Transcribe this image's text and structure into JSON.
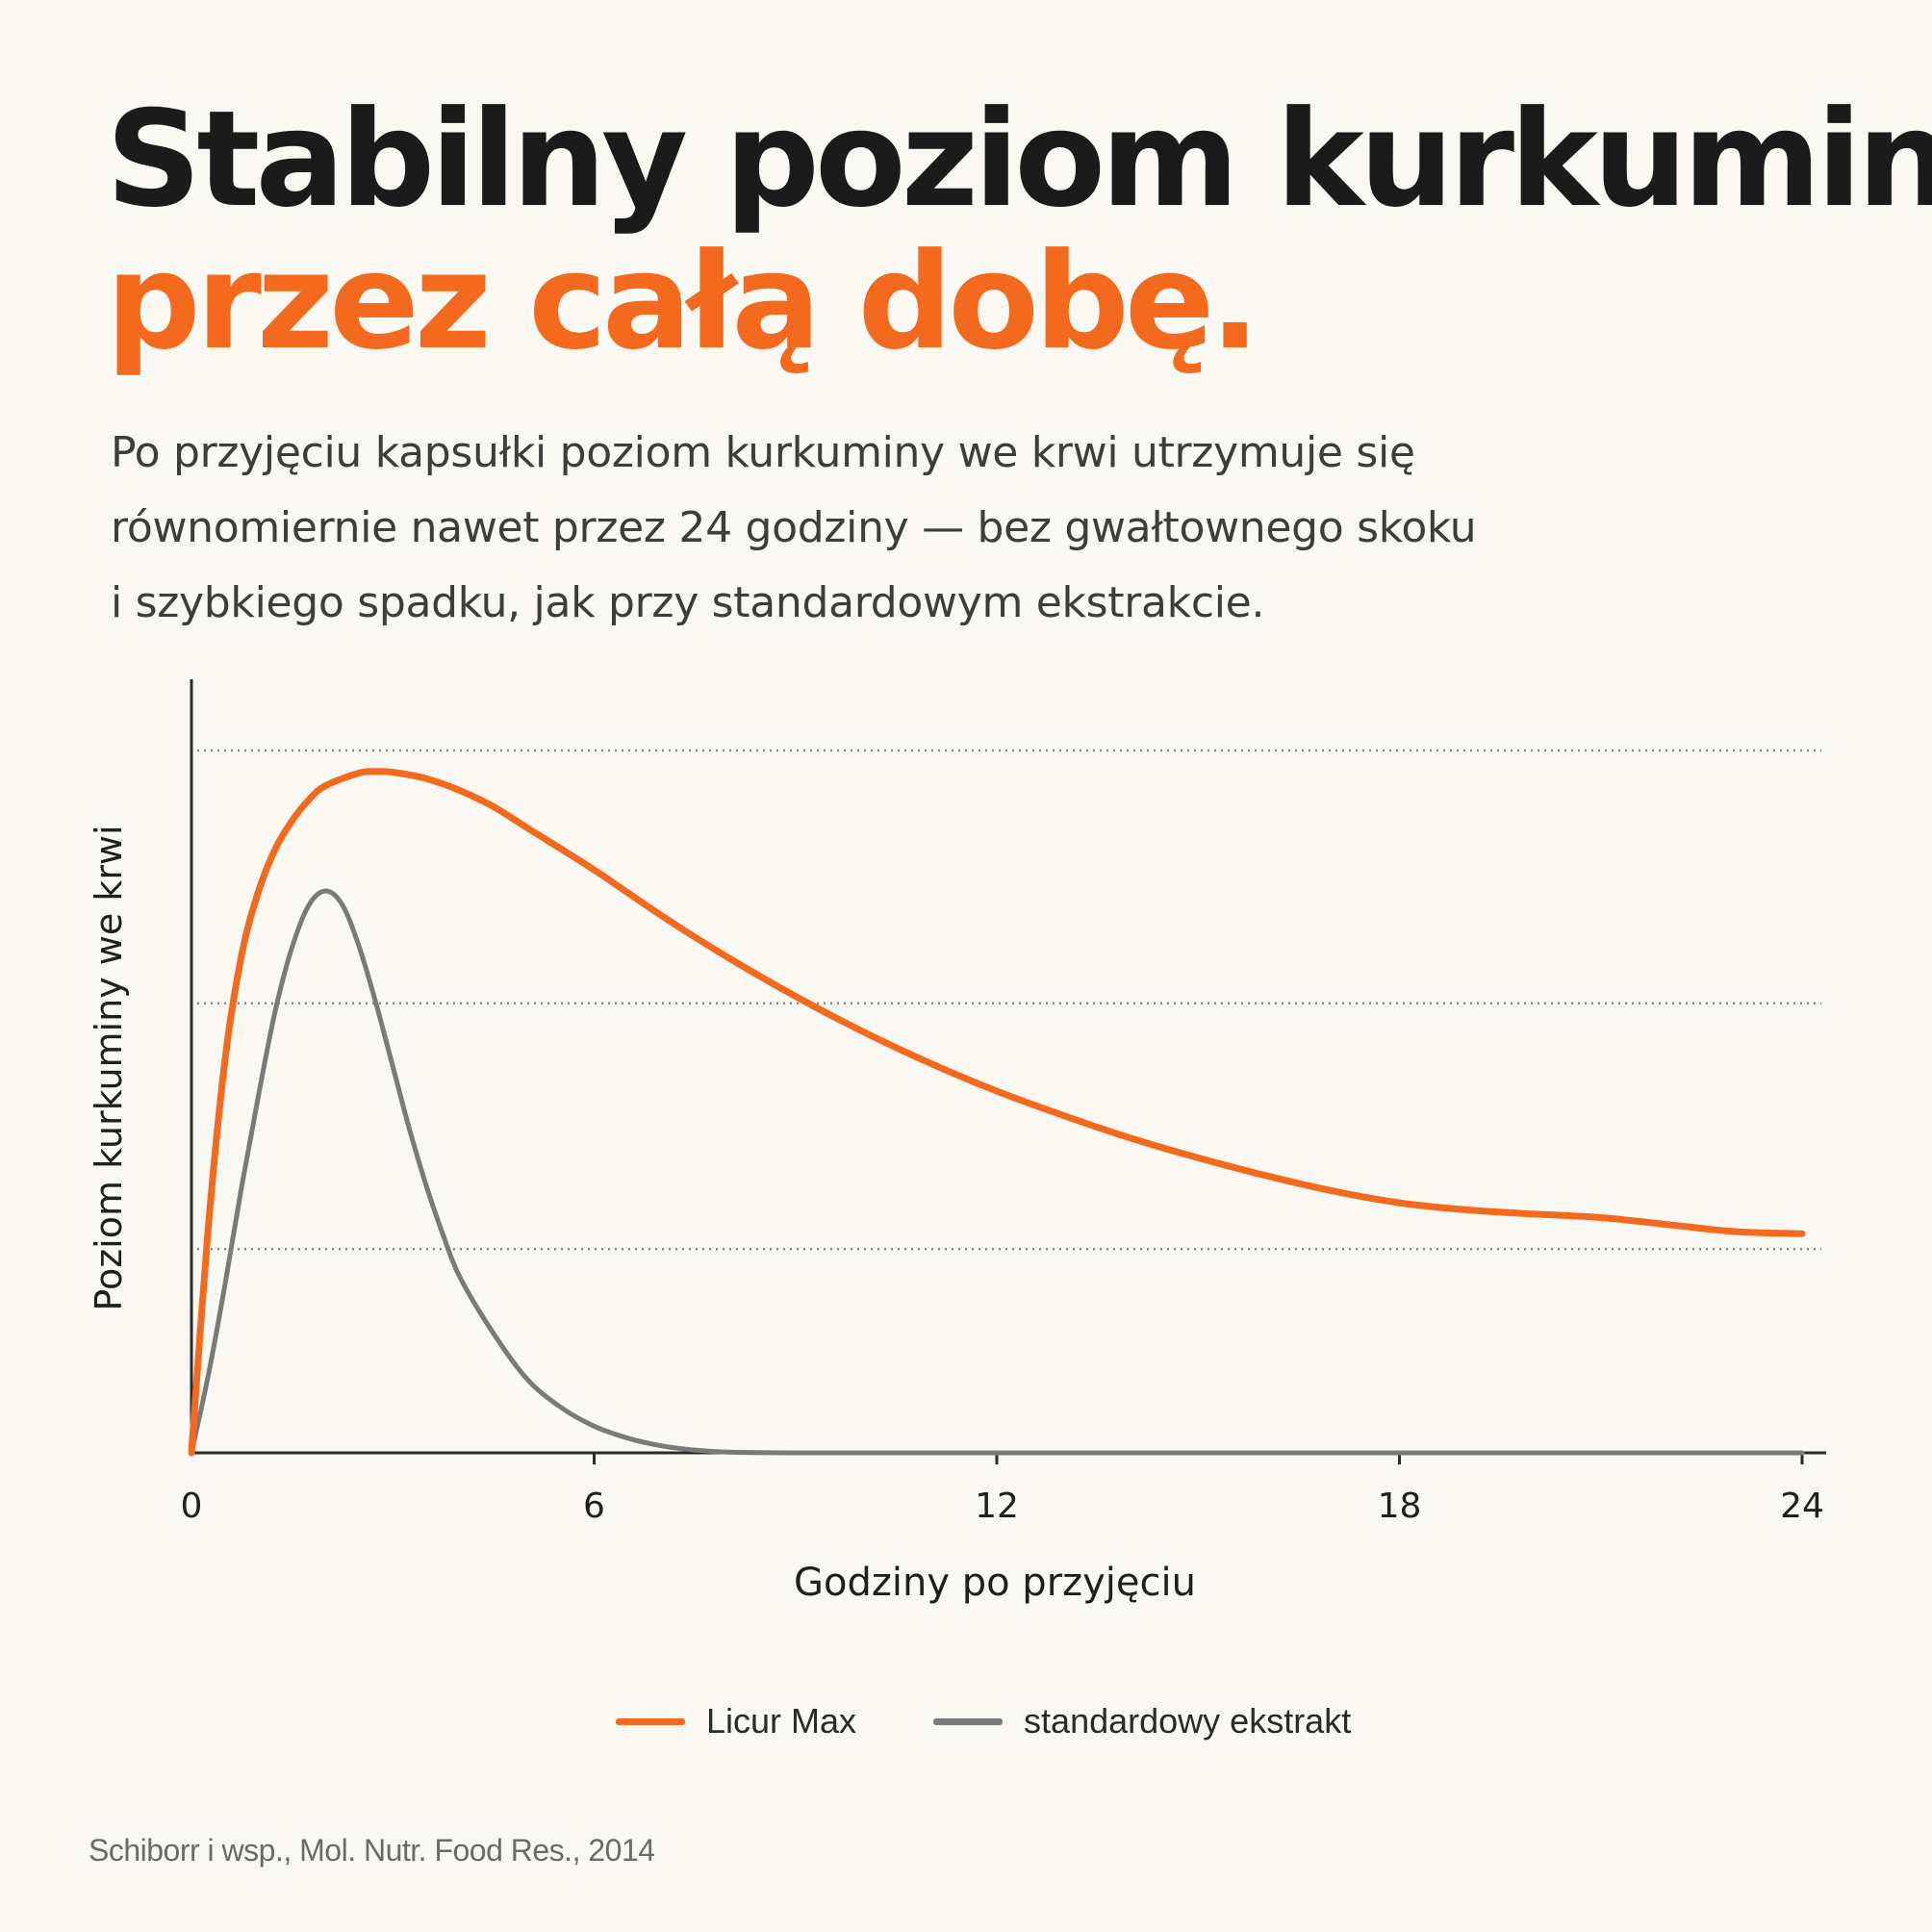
{
  "headline": {
    "line1": "Stabilny poziom kurkuminy",
    "line2": "przez całą dobę."
  },
  "lead": [
    "Po przyjęciu kapsułki poziom kurkuminy we krwi utrzymuje się",
    "równomiernie nawet przez 24 godziny — bez gwałtownego skoku",
    "i szybkiego spadku, jak przy standardowym ekstrakcie."
  ],
  "colors": {
    "accent": "#f36a1f",
    "secondary": "#7a7a7a",
    "text": "#1b1b1b",
    "background": "#faf8f3"
  },
  "chart_data": {
    "type": "line",
    "title": "",
    "xlabel": "Godziny po przyjęciu",
    "ylabel": "Poziom kurkuminy we krwi",
    "xticks": [
      0,
      6,
      12,
      18,
      24
    ],
    "xlim": [
      0,
      24
    ],
    "ylim": [
      0,
      100
    ],
    "y_gridlines": [
      29,
      64,
      100
    ],
    "grid": "horizontal dotted",
    "legend_position": "bottom-center",
    "series": [
      {
        "name": "Licur Max",
        "color": "#f36a1f",
        "x": [
          0,
          0.25,
          0.5,
          0.75,
          1,
          1.25,
          1.5,
          1.75,
          2,
          2.5,
          2.75,
          3,
          3.5,
          4,
          4.5,
          5,
          6,
          7,
          8,
          9,
          10,
          11,
          12,
          13,
          14,
          15,
          16,
          17,
          18,
          19,
          20,
          21,
          22,
          23,
          24
        ],
        "values": [
          0,
          32,
          56,
          71,
          80,
          86,
          90,
          93,
          95,
          96.8,
          97,
          96.9,
          96,
          94.3,
          92,
          89,
          83,
          76.5,
          70.5,
          65,
          60,
          55.5,
          51.5,
          48,
          44.8,
          42,
          39.5,
          37.3,
          35.6,
          34.6,
          34,
          33.5,
          32.5,
          31.5,
          31.2
        ]
      },
      {
        "name": "standardowy ekstrakt",
        "color": "#7a7a7a",
        "x": [
          0,
          0.25,
          0.5,
          0.75,
          1,
          1.25,
          1.5,
          1.75,
          2,
          2.25,
          2.5,
          2.75,
          3,
          3.25,
          3.5,
          3.75,
          4,
          4.5,
          5,
          5.5,
          6,
          6.5,
          7,
          7.5,
          8,
          9,
          10,
          12,
          14,
          16,
          18,
          20,
          22,
          24
        ],
        "values": [
          0,
          11,
          24,
          38,
          51,
          63,
          72,
          78,
          80,
          78,
          72,
          64,
          55,
          46,
          38,
          31,
          25,
          17,
          10.5,
          6.5,
          3.8,
          2.1,
          1,
          0.4,
          0.1,
          0,
          0,
          0,
          0,
          0,
          0,
          0,
          0,
          0
        ]
      }
    ]
  },
  "source": "Schiborr i wsp., Mol. Nutr. Food Res., 2014"
}
